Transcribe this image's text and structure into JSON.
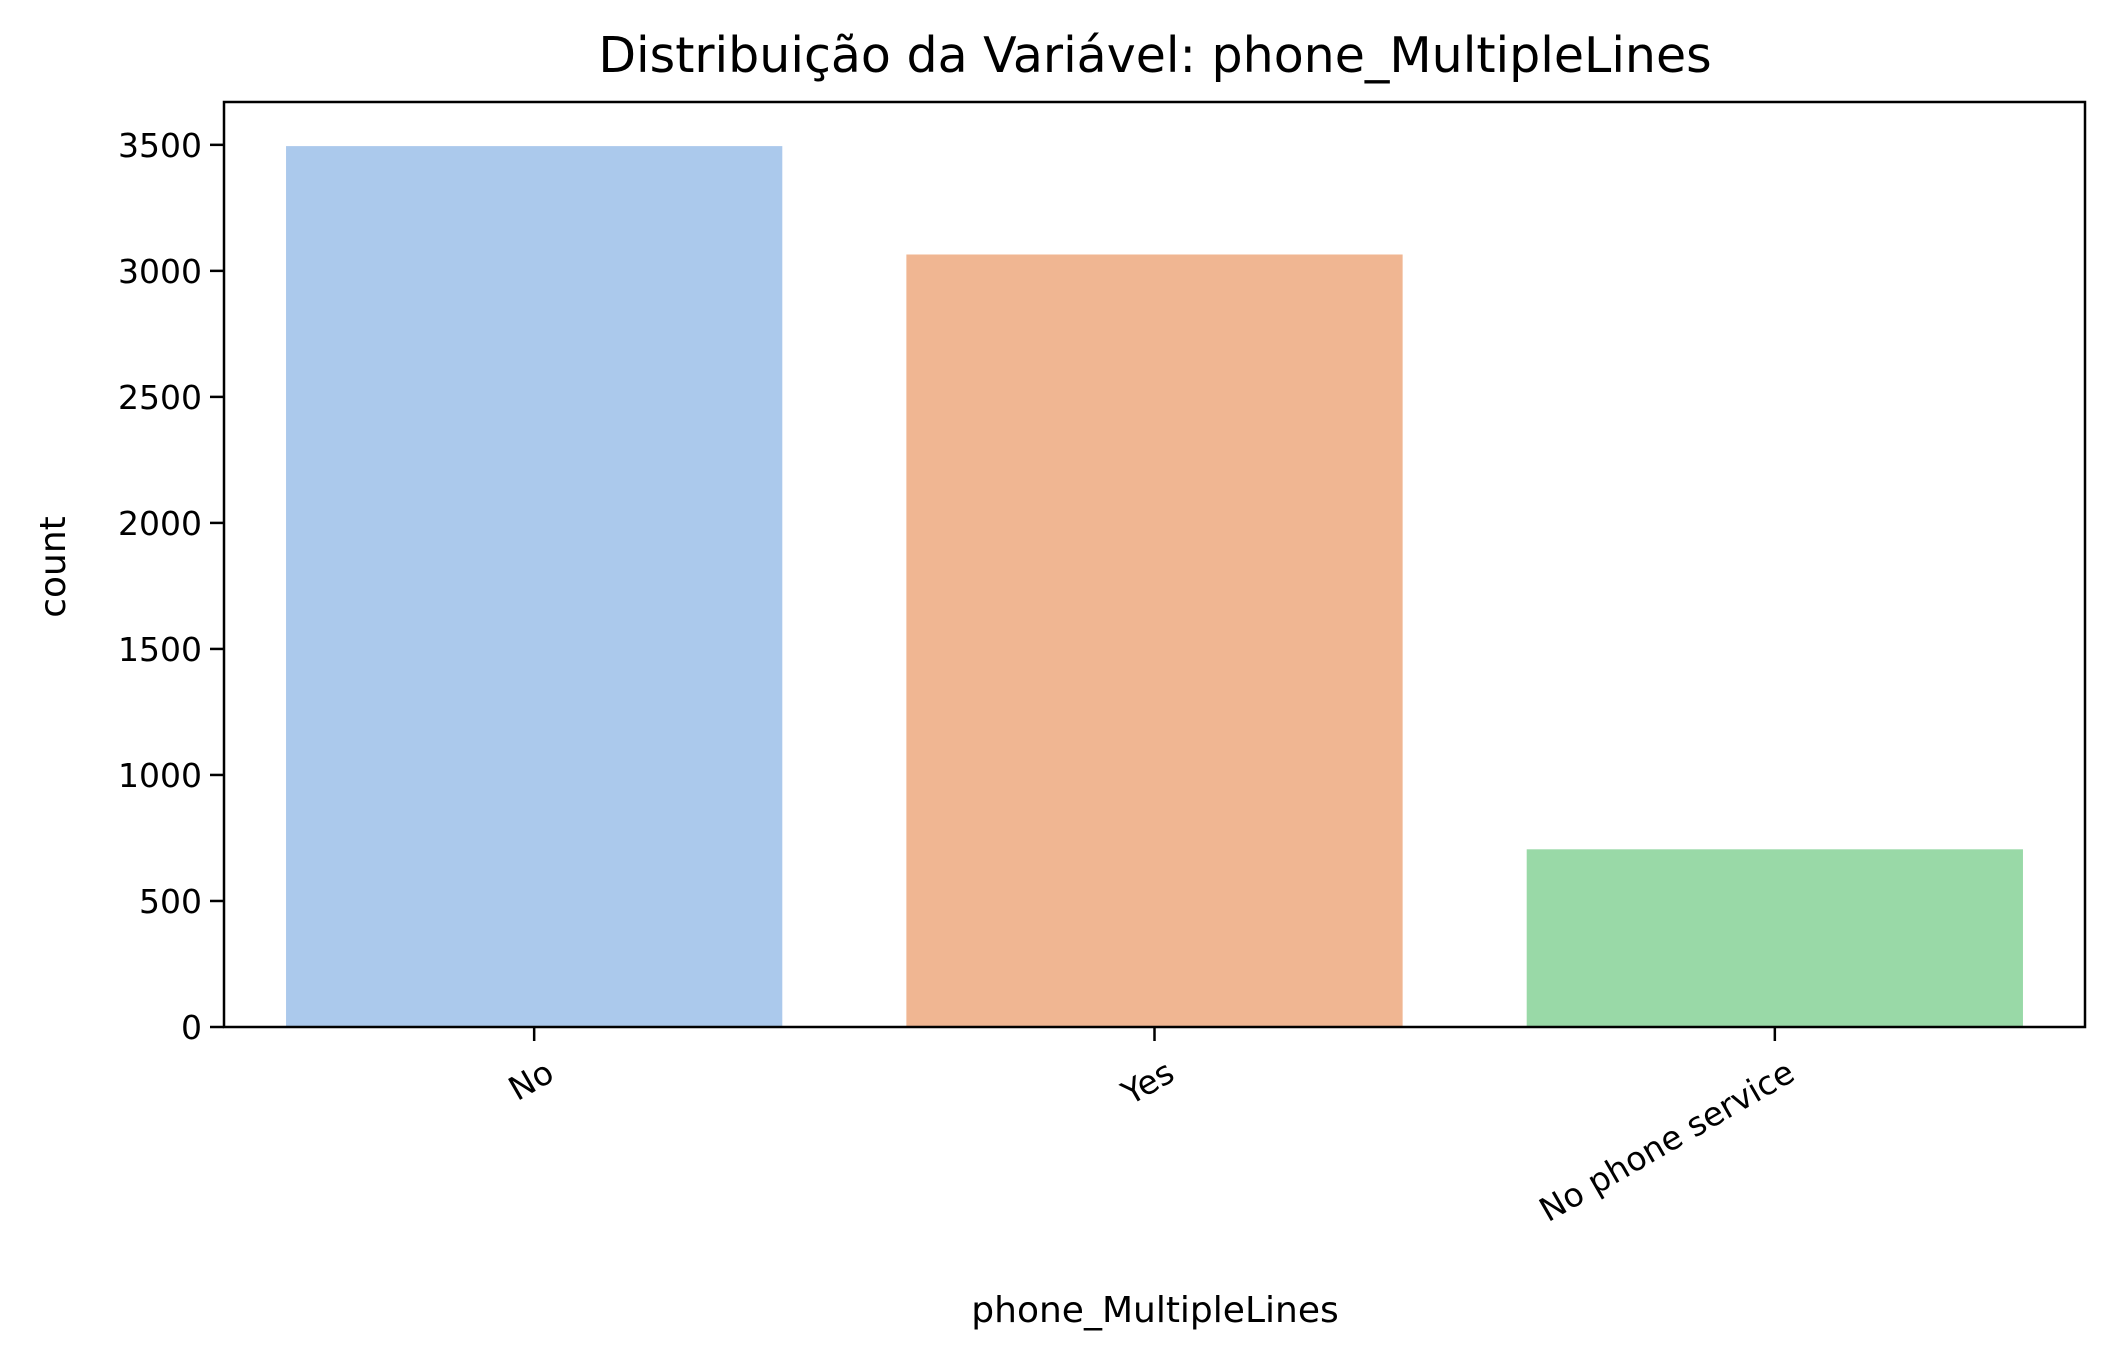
{
  "chart_data": {
    "type": "bar",
    "title": "Distribuição da Variável: phone_MultipleLines",
    "xlabel": "phone_MultipleLines",
    "ylabel": "count",
    "categories": [
      "No",
      "Yes",
      "No phone service"
    ],
    "values": [
      3495,
      3065,
      705
    ],
    "colors": [
      "#abc9ec",
      "#f0b692",
      "#99d9a7"
    ],
    "ylim": [
      0,
      3670
    ],
    "yticks": [
      0,
      500,
      1000,
      1500,
      2000,
      2500,
      3000,
      3500
    ],
    "grid": false,
    "legend": "none",
    "xtick_rotation_deg": 30
  }
}
